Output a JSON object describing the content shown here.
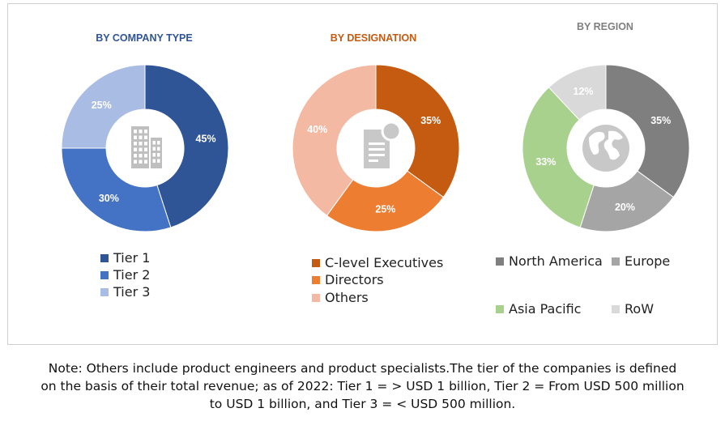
{
  "chart_data": [
    {
      "type": "pie",
      "title": "BY COMPANY TYPE",
      "title_color": "#2F5597",
      "categories": [
        "Tier 1",
        "Tier 2",
        "Tier 3"
      ],
      "values": [
        45,
        30,
        25
      ],
      "labels": [
        "45%",
        "30%",
        "25%"
      ],
      "colors": [
        "#2F5597",
        "#4472C4",
        "#A9BCE3"
      ],
      "center_icon": "office-buildings-icon",
      "legend_position": "bottom"
    },
    {
      "type": "pie",
      "title": "BY DESIGNATION",
      "title_color": "#C55A11",
      "categories": [
        "C-level Executives",
        "Directors",
        "Others"
      ],
      "values": [
        35,
        25,
        40
      ],
      "labels": [
        "35%",
        "25%",
        "40%"
      ],
      "colors": [
        "#C55A11",
        "#ED7D31",
        "#F4B9A2"
      ],
      "center_icon": "document-icon",
      "legend_position": "bottom"
    },
    {
      "type": "pie",
      "title": "BY REGION",
      "title_color": "#7F7F7F",
      "categories": [
        "North America",
        "Europe",
        "Asia Pacific",
        "RoW"
      ],
      "values": [
        35,
        20,
        33,
        12
      ],
      "labels": [
        "35%",
        "20%",
        "33%",
        "12%"
      ],
      "colors": [
        "#7F7F7F",
        "#A5A5A5",
        "#A9D18E",
        "#D9D9D9"
      ],
      "center_icon": "globe-icon",
      "legend_position": "bottom"
    }
  ],
  "note_lines": [
    "Note: Others include product engineers and product specialists.The tier of the companies is defined",
    "on the basis of their total revenue; as of 2022: Tier 1 = > USD 1 billion, Tier 2 = From USD 500 million",
    "to USD 1 billion, and Tier 3 = < USD 500 million."
  ]
}
